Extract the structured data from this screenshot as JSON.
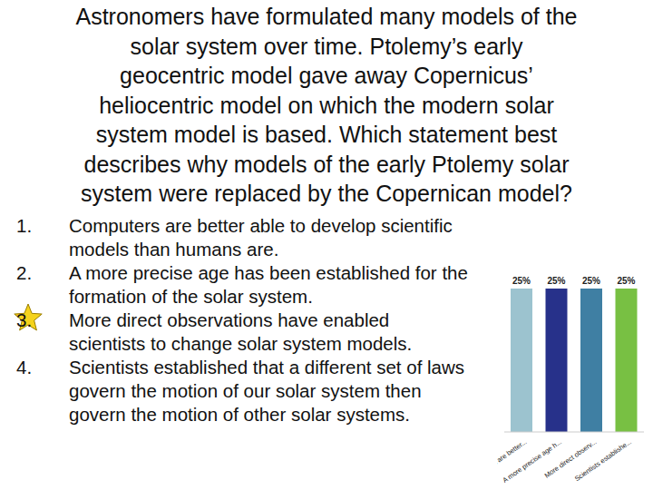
{
  "title_lines": [
    "Astronomers have formulated many models of the",
    "solar system over time. Ptolemy’s early",
    "geocentric model gave away Copernicus’",
    "heliocentric model on which the modern solar",
    "system model is based. Which statement best",
    "describes why models of the early Ptolemy solar",
    "system were replaced by the Copernican model?"
  ],
  "options": [
    {
      "number": "1.",
      "text": "Computers are better able to develop scientific models than humans are."
    },
    {
      "number": "2.",
      "text": "A more precise age has been established for the formation of the solar system."
    },
    {
      "number": "3.",
      "text": "More direct observations have enabled scientists to change solar system models."
    },
    {
      "number": "4.",
      "text": "Scientists established that a different set of laws govern the motion of our solar system then govern the motion of other solar systems."
    }
  ],
  "correct": 3,
  "chart_data": {
    "type": "bar",
    "categories": [
      "Computers are better...",
      "A more precise age h...",
      "More direct observ...",
      "Scientists establishe..."
    ],
    "values": [
      25,
      25,
      25,
      25
    ],
    "value_labels": [
      "25%",
      "25%",
      "25%",
      "25%"
    ],
    "data_labels": true,
    "colors": [
      "#9cc3cf",
      "#27318a",
      "#3f7fa3",
      "#78c043"
    ],
    "ylim": [
      0,
      25
    ],
    "yticks": [
      0,
      25
    ],
    "tick_labels": "x",
    "grid": false
  }
}
